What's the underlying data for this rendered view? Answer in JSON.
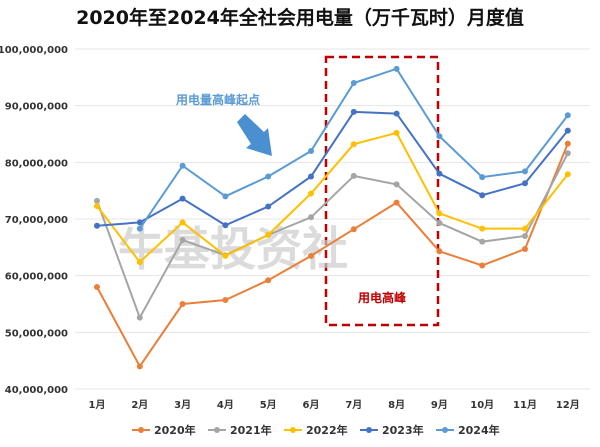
{
  "chart_data": {
    "type": "line",
    "title": "2020年至2024年全社会用电量（万千瓦时）月度值",
    "xlabel": "",
    "ylabel": "",
    "categories": [
      "1月",
      "2月",
      "3月",
      "4月",
      "5月",
      "6月",
      "7月",
      "8月",
      "9月",
      "10月",
      "11月",
      "12月"
    ],
    "ylim": [
      40000000,
      100000000
    ],
    "yticks": [
      40000000,
      50000000,
      60000000,
      70000000,
      80000000,
      90000000,
      100000000
    ],
    "ytick_labels": [
      "40,000,000",
      "50,000,000",
      "60,000,000",
      "70,000,000",
      "80,000,000",
      "90,000,000",
      "100,000,000"
    ],
    "grid": true,
    "legend": "bottom",
    "series": [
      {
        "name": "2020年",
        "color": "#E97F39",
        "values": [
          58000000,
          44000000,
          55000000,
          55700000,
          59200000,
          63500000,
          68200000,
          72900000,
          64300000,
          61800000,
          64700000,
          83300000
        ]
      },
      {
        "name": "2021年",
        "color": "#A5A5A5",
        "values": [
          73200000,
          52600000,
          66300000,
          63600000,
          67200000,
          70300000,
          77600000,
          76100000,
          69300000,
          66000000,
          67000000,
          81600000
        ]
      },
      {
        "name": "2022年",
        "color": "#FFC000",
        "values": [
          72300000,
          62400000,
          69400000,
          63500000,
          67200000,
          74500000,
          83200000,
          85200000,
          71000000,
          68300000,
          68300000,
          77900000
        ]
      },
      {
        "name": "2023年",
        "color": "#4472C4",
        "values": [
          68800000,
          69400000,
          73600000,
          68900000,
          72200000,
          77500000,
          88900000,
          88600000,
          78000000,
          74200000,
          76300000,
          85600000
        ]
      },
      {
        "name": "2024年",
        "color": "#5B9BD5",
        "values": [
          null,
          68300000,
          79400000,
          74000000,
          77500000,
          82000000,
          94000000,
          96500000,
          84600000,
          77400000,
          78400000,
          88300000
        ]
      }
    ],
    "annotations": [
      {
        "text": "用电量高峰起点",
        "color": "#5B9BD5"
      },
      {
        "text": "用电高峰",
        "color": "#C00000",
        "range": [
          "7月",
          "8月"
        ]
      }
    ]
  }
}
